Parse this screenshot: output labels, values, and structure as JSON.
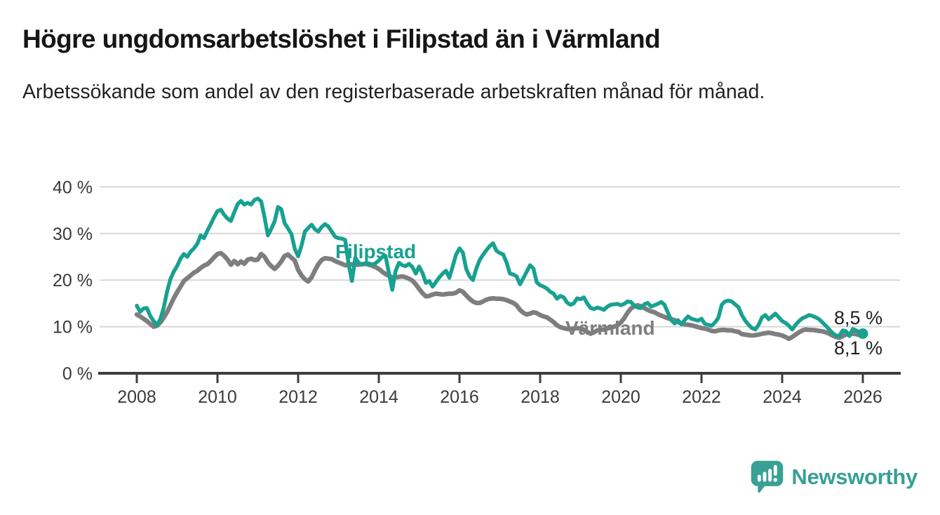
{
  "header": {
    "title": "Högre ungdomsarbetslöshet i Filipstad än i Värmland",
    "subtitle": "Arbetssökande som andel av den registerbaserade arbetskraften månad för månad."
  },
  "branding": {
    "name": "Newsworthy",
    "logo_icon": "speech-bubble-bar-chart-exclamation",
    "color": "#38a094"
  },
  "chart_data": {
    "type": "line",
    "title": "Högre ungdomsarbetslöshet i Filipstad än i Värmland",
    "unit": "%",
    "grid": true,
    "legend_position": "inline-labels",
    "x_axis": {
      "ticks": [
        2008,
        2010,
        2012,
        2014,
        2016,
        2018,
        2020,
        2022,
        2024,
        2026
      ],
      "tick_labels": [
        "2008",
        "2010",
        "2012",
        "2014",
        "2016",
        "2018",
        "2020",
        "2022",
        "2024",
        "2026"
      ]
    },
    "y_axis": {
      "ticks": [
        0,
        10,
        20,
        30,
        40
      ],
      "tick_labels": [
        "0 %",
        "10 %",
        "20 %",
        "30 %",
        "40 %"
      ],
      "range": [
        0,
        42
      ]
    },
    "colors": {
      "grid": "#d8d8d8",
      "axis": "#3d3d3d",
      "tick_text": "#3a3a3a",
      "end_label_text": "#1f1f1f"
    },
    "start_year": 2008,
    "points_per_year": 12,
    "series": [
      {
        "name": "Filipstad",
        "color": "#18a191",
        "line_width": 5.5,
        "end_label": "8,5 %",
        "end_value": 8.5,
        "end_dot": true,
        "values": [
          14.5,
          13.2,
          13.9,
          14.0,
          12.3,
          11.2,
          10.3,
          11.6,
          14.0,
          17.5,
          20.2,
          21.8,
          23.0,
          24.6,
          25.6,
          25.0,
          26.1,
          26.8,
          27.8,
          29.6,
          29.0,
          30.6,
          32.0,
          33.5,
          34.8,
          35.1,
          34.0,
          33.2,
          32.7,
          34.6,
          36.3,
          37.0,
          36.2,
          36.6,
          36.2,
          37.2,
          37.5,
          36.9,
          33.5,
          29.6,
          31.0,
          32.6,
          35.7,
          35.2,
          32.2,
          31.1,
          29.9,
          26.7,
          25.1,
          27.4,
          30.4,
          31.2,
          31.9,
          30.9,
          30.4,
          31.4,
          32.0,
          31.5,
          30.4,
          29.3,
          29.0,
          28.9,
          28.6,
          23.5,
          19.8,
          24.8,
          23.7,
          23.4,
          23.5,
          23.6,
          23.3,
          23.6,
          24.2,
          25.0,
          25.2,
          21.5,
          17.9,
          22.0,
          23.7,
          23.2,
          23.0,
          23.5,
          22.8,
          21.4,
          22.9,
          21.5,
          19.4,
          19.8,
          18.6,
          19.6,
          20.6,
          21.4,
          22.0,
          20.5,
          23.0,
          25.5,
          26.8,
          25.9,
          22.4,
          20.8,
          20.0,
          22.5,
          24.3,
          25.4,
          26.4,
          27.3,
          27.9,
          26.3,
          25.8,
          25.5,
          23.8,
          21.4,
          21.2,
          20.8,
          19.1,
          20.4,
          21.8,
          23.2,
          22.5,
          19.5,
          18.9,
          18.6,
          18.2,
          17.5,
          17.1,
          16.0,
          16.6,
          16.3,
          15.2,
          14.7,
          15.0,
          16.1,
          15.9,
          16.3,
          15.0,
          14.0,
          13.8,
          14.1,
          13.9,
          13.6,
          14.3,
          14.7,
          14.8,
          14.9,
          14.6,
          14.9,
          15.4,
          15.3,
          14.5,
          14.1,
          14.0,
          14.8,
          15.1,
          14.3,
          14.6,
          14.9,
          15.3,
          14.7,
          13.0,
          11.4,
          10.7,
          11.4,
          10.5,
          11.4,
          12.2,
          11.7,
          11.5,
          11.3,
          11.7,
          10.6,
          10.4,
          10.2,
          10.9,
          11.9,
          14.7,
          15.4,
          15.6,
          15.4,
          14.8,
          14.2,
          12.5,
          11.3,
          10.4,
          9.7,
          9.4,
          10.4,
          12.0,
          12.5,
          11.6,
          12.2,
          12.8,
          12.0,
          11.2,
          10.8,
          10.2,
          9.4,
          10.4,
          11.2,
          11.8,
          12.1,
          12.5,
          12.3,
          12.0,
          11.6,
          10.9,
          10.2,
          9.4,
          8.6,
          8.1,
          8.0,
          9.2,
          9.0,
          8.0,
          9.5,
          9.2,
          8.8,
          8.5
        ]
      },
      {
        "name": "Värmland",
        "color": "#7e7e7e",
        "line_width": 6.5,
        "end_label": "8,1 %",
        "end_value": 8.1,
        "end_dot": false,
        "values": [
          12.6,
          12.2,
          11.7,
          11.2,
          10.6,
          10.0,
          10.2,
          10.9,
          11.9,
          13.1,
          14.6,
          16.1,
          17.4,
          18.6,
          19.8,
          20.4,
          21.0,
          21.6,
          22.0,
          22.6,
          23.1,
          23.4,
          24.1,
          24.9,
          25.6,
          25.8,
          25.2,
          24.4,
          23.3,
          24.1,
          23.4,
          24.0,
          23.5,
          24.4,
          24.6,
          24.3,
          24.4,
          25.6,
          25.0,
          23.8,
          23.0,
          22.4,
          23.1,
          24.0,
          25.2,
          25.5,
          24.8,
          24.2,
          22.2,
          21.0,
          20.2,
          19.7,
          20.6,
          22.1,
          23.4,
          24.3,
          24.7,
          24.6,
          24.5,
          24.1,
          23.8,
          23.5,
          23.2,
          23.3,
          23.4,
          23.3,
          23.3,
          23.4,
          23.5,
          23.3,
          23.1,
          22.8,
          22.4,
          21.8,
          21.3,
          20.9,
          20.6,
          20.6,
          20.7,
          20.8,
          20.6,
          20.3,
          19.9,
          19.1,
          18.1,
          17.2,
          16.5,
          16.6,
          16.9,
          17.1,
          17.0,
          16.9,
          17.0,
          17.1,
          17.1,
          17.3,
          17.8,
          17.5,
          16.7,
          16.0,
          15.4,
          15.1,
          15.1,
          15.4,
          15.8,
          16.0,
          16.1,
          16.0,
          16.0,
          15.9,
          15.7,
          15.4,
          15.1,
          14.6,
          13.6,
          13.0,
          12.6,
          12.8,
          13.1,
          12.9,
          12.5,
          12.2,
          12.0,
          11.5,
          11.0,
          10.3,
          9.9,
          9.7,
          9.5,
          9.5,
          9.6,
          9.7,
          9.6,
          9.3,
          8.9,
          8.5,
          8.8,
          9.2,
          9.3,
          9.4,
          9.6,
          9.8,
          10.0,
          10.3,
          10.9,
          11.8,
          13.0,
          13.9,
          14.4,
          14.6,
          14.4,
          14.0,
          13.6,
          13.3,
          13.1,
          12.7,
          12.4,
          12.1,
          11.8,
          11.6,
          11.4,
          11.0,
          10.7,
          10.5,
          10.4,
          10.3,
          10.1,
          9.9,
          9.7,
          9.6,
          9.4,
          9.1,
          9.0,
          9.2,
          9.3,
          9.3,
          9.2,
          9.2,
          9.0,
          8.9,
          8.4,
          8.3,
          8.2,
          8.1,
          8.2,
          8.3,
          8.5,
          8.6,
          8.7,
          8.6,
          8.4,
          8.3,
          8.1,
          7.8,
          7.4,
          7.8,
          8.3,
          8.8,
          9.2,
          9.4,
          9.3,
          9.3,
          9.2,
          9.1,
          9.0,
          8.8,
          8.5,
          8.1,
          7.8,
          7.6,
          8.0,
          8.3,
          8.5,
          8.5,
          8.4,
          8.2,
          8.1
        ]
      }
    ]
  }
}
